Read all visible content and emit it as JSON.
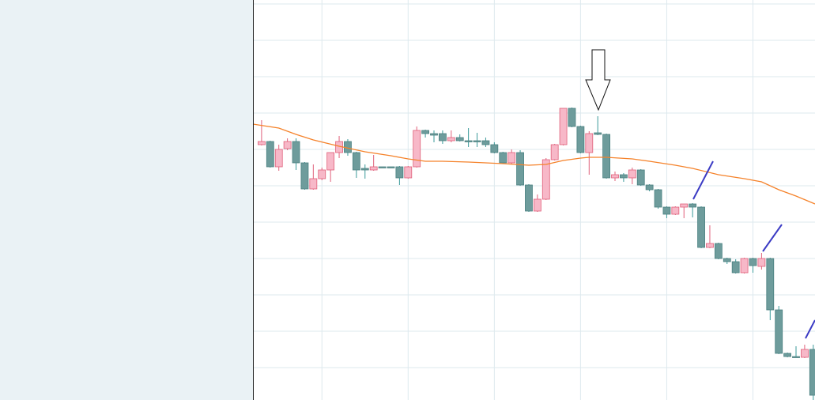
{
  "chart_data": {
    "type": "candlestick",
    "x": [
      0,
      1,
      2,
      3,
      4,
      5,
      6,
      7,
      8,
      9,
      10,
      11,
      12,
      13,
      14,
      15,
      16,
      17,
      18,
      19,
      20,
      21,
      22,
      23,
      24,
      25,
      26,
      27,
      28,
      29,
      30,
      31,
      32,
      33,
      34,
      35,
      36,
      37,
      38,
      39,
      40,
      41,
      42,
      43,
      44,
      45,
      46,
      47,
      48,
      49,
      50,
      51,
      52,
      53,
      54,
      55,
      56,
      57,
      58,
      59,
      60,
      61,
      62,
      63,
      64
    ],
    "open": [
      282,
      286,
      254,
      277,
      286,
      259,
      226,
      239,
      250,
      272,
      286,
      272,
      252,
      250,
      254,
      254,
      254,
      240,
      254,
      300,
      296,
      296,
      287,
      291,
      287,
      287,
      287,
      282,
      272,
      259,
      272,
      231,
      198,
      213,
      263,
      282,
      328,
      305,
      272,
      297,
      295,
      240,
      244,
      240,
      250,
      231,
      225,
      203,
      194,
      203,
      207,
      203,
      152,
      157,
      138,
      134,
      120,
      138,
      128,
      138,
      73,
      18,
      14,
      13,
      23
    ],
    "high": [
      313,
      287,
      282,
      290,
      290,
      260,
      257,
      253,
      272,
      293,
      289,
      273,
      257,
      269,
      254,
      254,
      255,
      255,
      305,
      301,
      300,
      300,
      300,
      295,
      303,
      297,
      291,
      285,
      273,
      276,
      275,
      232,
      219,
      265,
      283,
      328,
      329,
      306,
      299,
      318,
      296,
      248,
      246,
      253,
      251,
      232,
      226,
      204,
      204,
      207,
      208,
      204,
      180,
      158,
      139,
      137,
      139,
      139,
      145,
      139,
      78,
      19,
      27,
      29,
      29
    ],
    "low": [
      281,
      253,
      249,
      275,
      250,
      225,
      225,
      237,
      235,
      265,
      268,
      240,
      239,
      249,
      253,
      253,
      231,
      239,
      253,
      291,
      285,
      283,
      285,
      286,
      279,
      279,
      279,
      271,
      258,
      258,
      230,
      197,
      197,
      212,
      262,
      281,
      304,
      271,
      244,
      294,
      239,
      236,
      235,
      232,
      230,
      223,
      201,
      189,
      193,
      189,
      190,
      151,
      151,
      137,
      131,
      119,
      119,
      120,
      124,
      60,
      17,
      13,
      13,
      12,
      -41
    ],
    "close": [
      286,
      254,
      276,
      286,
      259,
      226,
      239,
      250,
      272,
      286,
      272,
      250,
      250,
      254,
      253,
      253,
      240,
      254,
      300,
      296,
      294,
      287,
      291,
      287,
      286,
      286,
      282,
      272,
      259,
      272,
      231,
      198,
      213,
      263,
      282,
      328,
      305,
      272,
      296,
      295,
      240,
      244,
      240,
      250,
      231,
      225,
      203,
      194,
      203,
      207,
      203,
      152,
      157,
      138,
      134,
      120,
      138,
      129,
      138,
      73,
      18,
      14,
      13,
      23,
      -35
    ],
    "up_color": "#f7b8c8",
    "down_color": "#6e9c9c",
    "overlay": {
      "type": "line",
      "color": "#f5822a",
      "x": [
        -1,
        2,
        4,
        6,
        9,
        12,
        15,
        17,
        19,
        21,
        24,
        26,
        28,
        31,
        33,
        35,
        37,
        38,
        40,
        43,
        45,
        48,
        50,
        53,
        56,
        58,
        60,
        62,
        64.2
      ],
      "values": [
        308,
        303,
        295,
        288,
        280,
        273,
        268,
        264,
        261,
        261,
        260,
        259,
        258,
        256,
        257,
        262,
        265,
        266,
        266,
        264,
        261,
        256,
        252,
        244,
        239,
        235,
        225,
        217,
        207
      ]
    },
    "xlim": [
      -1,
      64.2
    ],
    "xticks": [
      7,
      17,
      27,
      37,
      47,
      57
    ],
    "ylim": [
      -41,
      465
    ],
    "yticks": [
      0,
      46,
      92,
      138,
      184,
      230,
      276,
      322,
      368,
      414,
      460
    ],
    "grid": true
  }
}
